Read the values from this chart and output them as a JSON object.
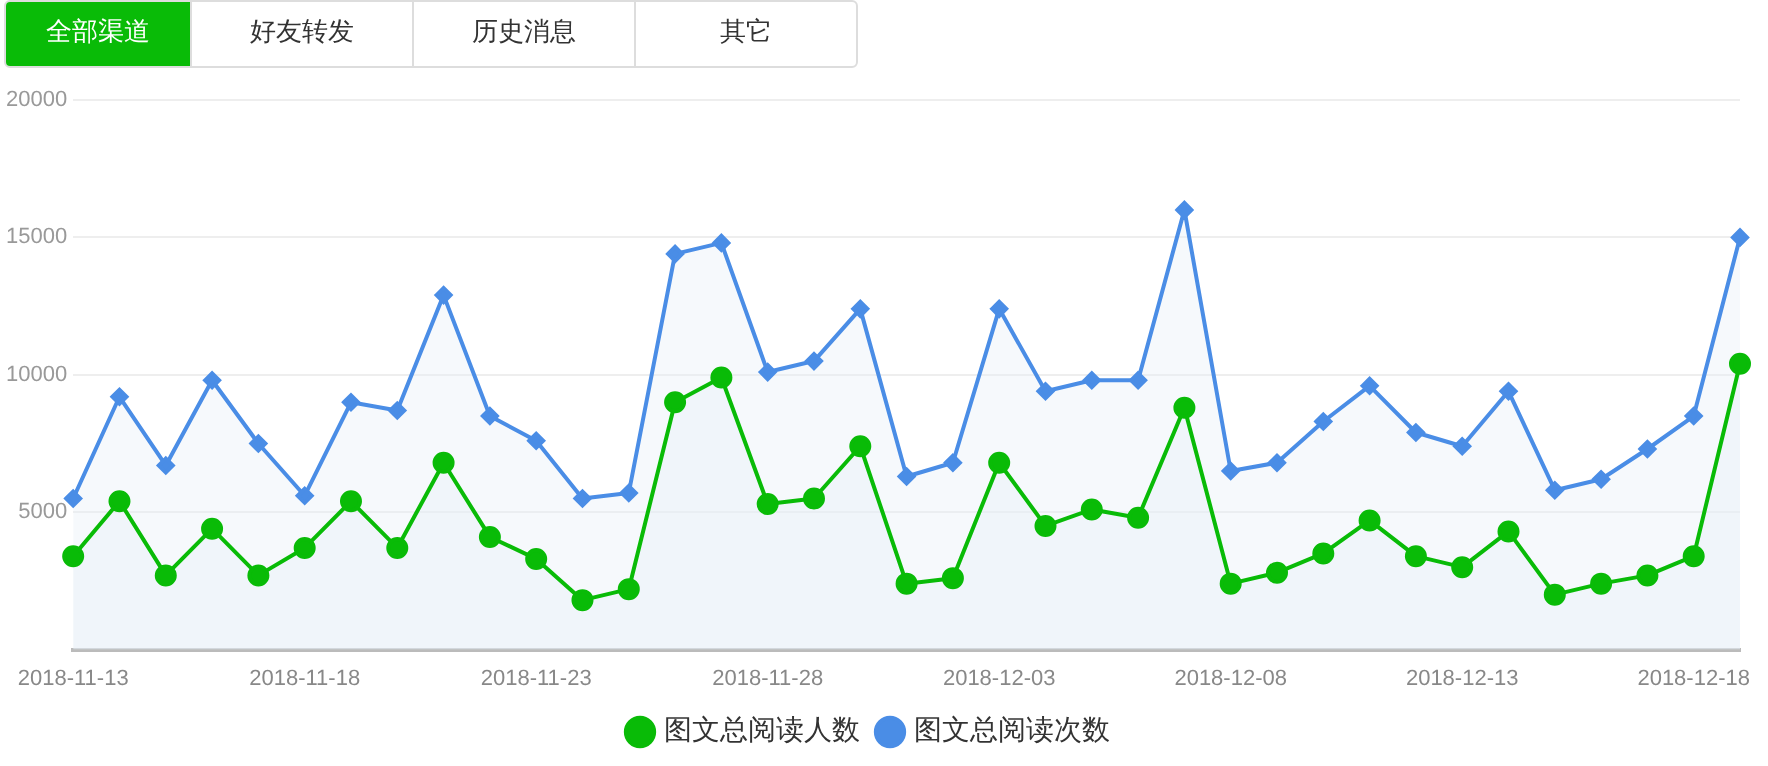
{
  "chart_data": {
    "type": "line",
    "annotations": [
      "全部渠道",
      "好友转发",
      "历史消息",
      "其它"
    ],
    "categories": [
      "2018-11-13",
      null,
      null,
      null,
      null,
      "2018-11-18",
      null,
      null,
      null,
      null,
      "2018-11-23",
      null,
      null,
      null,
      null,
      "2018-11-28",
      null,
      null,
      null,
      null,
      "2018-12-03",
      null,
      null,
      null,
      null,
      "2018-12-08",
      null,
      null,
      null,
      null,
      "2018-12-13",
      null,
      null,
      null,
      null,
      "2018-12-18",
      null
    ],
    "series": [
      {
        "name": "图文总阅读人数",
        "type": "area",
        "color": "#09bb07",
        "marker": "circle",
        "values": [
          3400,
          5400,
          2700,
          4400,
          2700,
          3700,
          5400,
          3700,
          6800,
          4100,
          3300,
          1800,
          2200,
          9000,
          9900,
          5300,
          5500,
          7400,
          2400,
          2600,
          6800,
          4500,
          5100,
          4800,
          8800,
          2400,
          2800,
          3500,
          4700,
          3400,
          3000,
          4300,
          2000,
          2400,
          2700,
          3400,
          10400
        ]
      },
      {
        "name": "图文总阅读次数",
        "type": "area",
        "color": "#4a8de6",
        "marker": "diamond",
        "values": [
          5500,
          9200,
          6700,
          9800,
          7500,
          5600,
          9000,
          8700,
          12900,
          8500,
          7600,
          5500,
          5700,
          14400,
          14800,
          10100,
          10500,
          12400,
          6300,
          6800,
          12400,
          9400,
          9800,
          9800,
          16000,
          6500,
          6800,
          8300,
          9600,
          7900,
          7400,
          9400,
          5800,
          6200,
          7300,
          8500,
          15000
        ]
      }
    ],
    "ylim": [
      0,
      20000
    ],
    "yticks": [
      5000,
      10000,
      15000,
      20000
    ],
    "grid": "y",
    "legend": "bottom"
  }
}
